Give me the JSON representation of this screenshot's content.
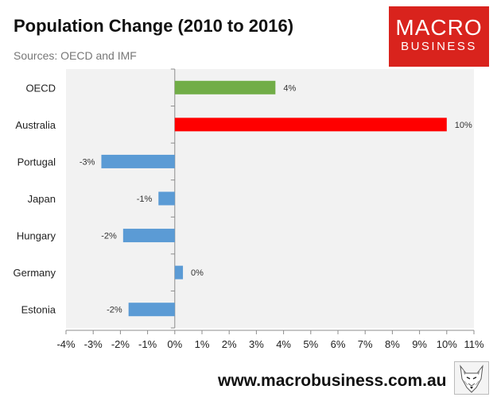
{
  "header": {
    "title": "Population Change (2010 to 2016)",
    "subtitle": "Sources: OECD and IMF"
  },
  "logo": {
    "line1": "MACRO",
    "line2": "BUSINESS"
  },
  "footer": {
    "website": "www.macrobusiness.com.au",
    "icon": "wolf-icon"
  },
  "colors": {
    "green": "#71ad47",
    "red": "#ff0000",
    "blue": "#5b9bd5",
    "plot_bg": "#f2f2f2",
    "brand": "#d9231d"
  },
  "chart_data": {
    "type": "bar",
    "orientation": "horizontal",
    "title": "Population Change (2010 to 2016)",
    "subtitle": "Sources: OECD and IMF",
    "categories": [
      "OECD",
      "Australia",
      "Portugal",
      "Japan",
      "Hungary",
      "Germany",
      "Estonia"
    ],
    "values": [
      3.7,
      10.0,
      -2.7,
      -0.6,
      -1.9,
      0.3,
      -1.7
    ],
    "data_labels": [
      "4%",
      "10%",
      "-3%",
      "-1%",
      "-2%",
      "0%",
      "-2%"
    ],
    "bar_colors": [
      "#71ad47",
      "#ff0000",
      "#5b9bd5",
      "#5b9bd5",
      "#5b9bd5",
      "#5b9bd5",
      "#5b9bd5"
    ],
    "xlim": [
      -4,
      11
    ],
    "xticks": [
      "-4%",
      "-3%",
      "-2%",
      "-1%",
      "0%",
      "1%",
      "2%",
      "3%",
      "4%",
      "5%",
      "6%",
      "7%",
      "8%",
      "9%",
      "10%",
      "11%"
    ],
    "xlabel": "",
    "ylabel": "",
    "grid": false,
    "legend": "none"
  }
}
